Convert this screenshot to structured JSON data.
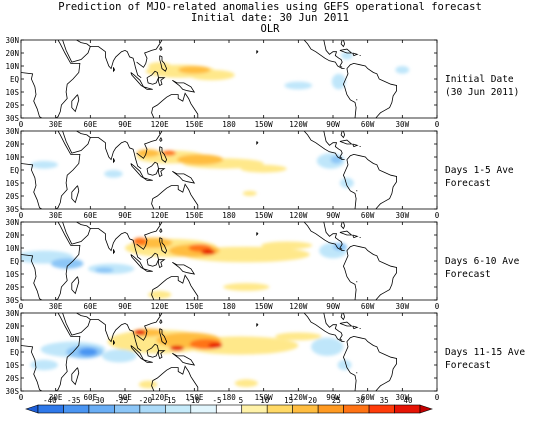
{
  "title": {
    "line1": "Prediction of MJO-related anomalies using GEFS operational forecast",
    "line2": "Initial date: 30 Jun 2011",
    "line3": "OLR"
  },
  "lat_labels": [
    "30N",
    "20N",
    "10N",
    "EQ",
    "10S",
    "20S",
    "30S"
  ],
  "lon_labels": [
    "0",
    "30E",
    "60E",
    "90E",
    "120E",
    "150E",
    "180",
    "150W",
    "120W",
    "90W",
    "60W",
    "30W",
    "0"
  ],
  "panels": [
    {
      "label": "Initial Date\n(30 Jun 2011)"
    },
    {
      "label": "Days 1-5 Ave\nForecast"
    },
    {
      "label": "Days 6-10 Ave\nForecast"
    },
    {
      "label": "Days 11-15 Ave\nForecast"
    }
  ],
  "colorbar": {
    "levels": [
      "-40",
      "-35",
      "-30",
      "-25",
      "-20",
      "-15",
      "-10",
      "-5",
      "5",
      "10",
      "15",
      "20",
      "25",
      "30",
      "35",
      "40"
    ],
    "colors": [
      "#1e5fd8",
      "#2f79ea",
      "#4a95f2",
      "#6aaef5",
      "#8cc6f7",
      "#abdaf8",
      "#c6ebfa",
      "#e2f6fd",
      "#ffffff",
      "#fff2a8",
      "#ffd966",
      "#ffbd40",
      "#ff9a22",
      "#ff7314",
      "#ff3c0a",
      "#e61405",
      "#c20000"
    ]
  },
  "colors": {
    "neg_light": "#bfe6fa",
    "neg_mid": "#8cc6f7",
    "neg_strong": "#4a95f2",
    "pos_light": "#ffe88a",
    "pos_mid": "#ffbd40",
    "pos_strong": "#ff7314",
    "pos_max": "#e61405"
  }
}
